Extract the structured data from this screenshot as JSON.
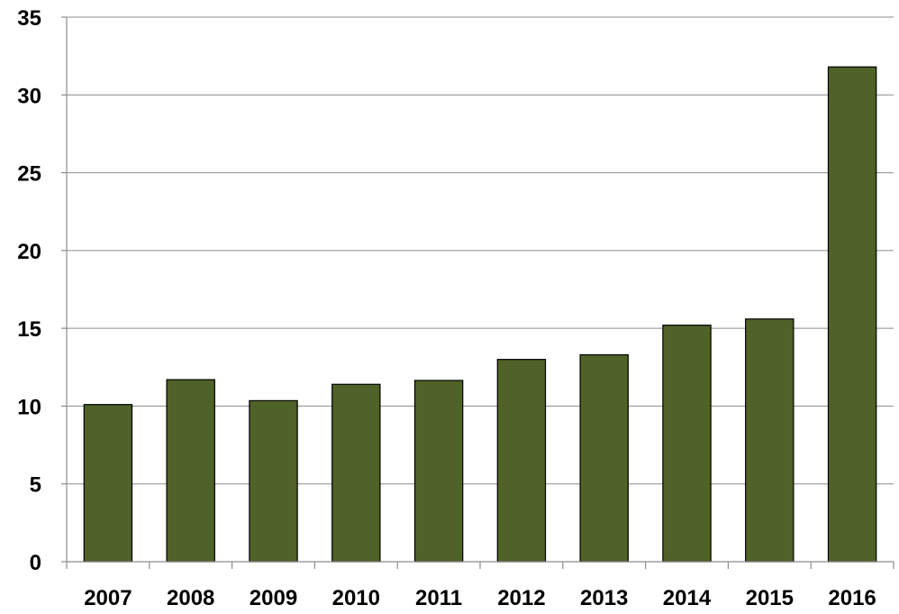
{
  "chart_data": {
    "type": "bar",
    "title": "",
    "xlabel": "",
    "ylabel": "",
    "categories": [
      "2007",
      "2008",
      "2009",
      "2010",
      "2011",
      "2012",
      "2013",
      "2014",
      "2015",
      "2016"
    ],
    "series": [
      {
        "values": [
          10.1,
          11.7,
          10.35,
          11.4,
          11.65,
          13.0,
          13.3,
          15.2,
          15.6,
          31.8
        ]
      }
    ],
    "ylim": [
      0,
      35
    ],
    "yticks": [
      "0",
      "5",
      "10",
      "15",
      "20",
      "25",
      "30",
      "35"
    ],
    "grid": true,
    "legend": "none",
    "bar_color": "#4f6228",
    "bar_outline_color": "#000000"
  }
}
